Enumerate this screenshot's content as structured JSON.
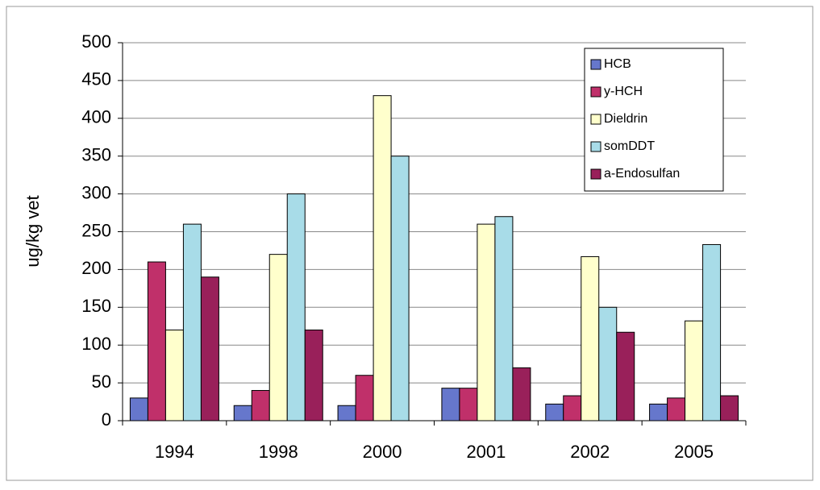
{
  "chart_data": {
    "type": "bar",
    "y_label": "ug/kg vet",
    "categories": [
      "1994",
      "1998",
      "2000",
      "2001",
      "2002",
      "2005"
    ],
    "series": [
      {
        "name": "HCB",
        "color": "#6677cc",
        "values": [
          30,
          20,
          20,
          43,
          22,
          22
        ]
      },
      {
        "name": "y-HCH",
        "color": "#c0306a",
        "values": [
          210,
          40,
          60,
          43,
          33,
          30
        ]
      },
      {
        "name": "Dieldrin",
        "color": "#ffffcc",
        "values": [
          120,
          220,
          430,
          260,
          217,
          132
        ]
      },
      {
        "name": "somDDT",
        "color": "#a8dce8",
        "values": [
          260,
          300,
          350,
          270,
          150,
          233
        ]
      },
      {
        "name": "a-Endosulfan",
        "color": "#99205a",
        "values": [
          190,
          120,
          null,
          70,
          117,
          33
        ]
      }
    ],
    "ylim": [
      0,
      500
    ],
    "yticks": [
      0,
      50,
      100,
      150,
      200,
      250,
      300,
      350,
      400,
      450,
      500
    ],
    "grid": true,
    "legend": "top-right"
  }
}
